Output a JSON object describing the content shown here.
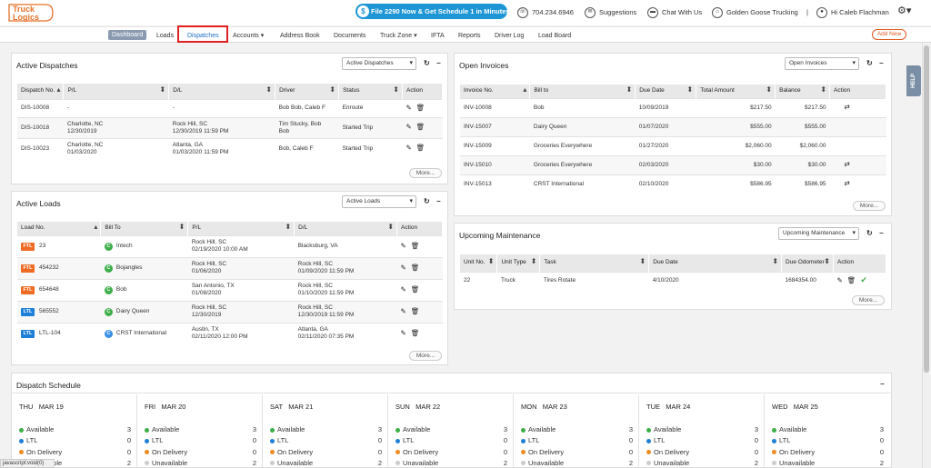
{
  "app": {
    "logo_line1": "Truck",
    "logo_line2": "Logics"
  },
  "top": {
    "promo": "File 2290 Now & Get Schedule 1 in Minutes",
    "phone": "704.234.6946",
    "suggestions": "Suggestions",
    "chat": "Chat With Us",
    "company": "Golden Goose Trucking",
    "divider": "|",
    "user": "Hi Caleb Flachman"
  },
  "nav": {
    "items": [
      "Dashboard",
      "Loads",
      "Dispatches",
      "Accounts ▾",
      "Address Book",
      "Documents",
      "Truck Zone ▾",
      "IFTA",
      "Reports",
      "Driver Log",
      "Load Board"
    ],
    "add_new": "Add New",
    "help": "HELP"
  },
  "dispatches": {
    "title": "Active Dispatches",
    "select": "Active Dispatches",
    "headers": [
      "Dispatch No.",
      "P/L",
      "D/L",
      "Driver",
      "Status",
      "Action"
    ],
    "rows": [
      {
        "no": "DIS-10008",
        "pl1": "-",
        "pl2": "",
        "dl1": "-",
        "dl2": "",
        "driver1": "Bob Bob, Caleb F",
        "driver2": "",
        "status": "Enroute"
      },
      {
        "no": "DIS-10018",
        "pl1": "Charlotte, NC",
        "pl2": "12/30/2019",
        "dl1": "Rock Hill, SC",
        "dl2": "12/30/2019 11:59 PM",
        "driver1": "Tim Stucky, Bob",
        "driver2": "Bob",
        "status": "Started Trip"
      },
      {
        "no": "DIS-10023",
        "pl1": "Charlotte, NC",
        "pl2": "01/03/2020",
        "dl1": "Atlanta, GA",
        "dl2": "01/03/2020 11:59 PM",
        "driver1": "Bob, Caleb F",
        "driver2": "",
        "status": "Started Trip"
      }
    ],
    "more": "More..."
  },
  "loads": {
    "title": "Active Loads",
    "select": "Active Loads",
    "headers": [
      "Load No.",
      "Bill To",
      "P/L",
      "D/L",
      "Action"
    ],
    "rows": [
      {
        "type": "FTL",
        "no": "23",
        "bill": "Intech",
        "pl1": "Rock Hill, SC",
        "pl2": "02/19/2020 10:00 AM",
        "dl1": "Blacksburg, VA",
        "dl2": ""
      },
      {
        "type": "FTL",
        "no": "454232",
        "bill": "Bojangles",
        "pl1": "Rock Hill, SC",
        "pl2": "01/06/2020",
        "dl1": "Rock Hill, SC",
        "dl2": "01/09/2020 11:59 PM"
      },
      {
        "type": "FTL",
        "no": "654648",
        "bill": "Bob",
        "pl1": "San Antonio, TX",
        "pl2": "01/08/2020",
        "dl1": "Rock Hill, SC",
        "dl2": "01/10/2020 11:59 PM"
      },
      {
        "type": "LTL",
        "no": "565552",
        "bill": "Dairy Queen",
        "pl1": "Rock Hill, SC",
        "pl2": "12/30/2019",
        "dl1": "Rock Hill, SC",
        "dl2": "12/30/2019 11:59 PM"
      },
      {
        "type": "LTL",
        "no": "LTL-104",
        "bill": "CRST International",
        "pl1": "Austin, TX",
        "pl2": "02/11/2020 12:00 PM",
        "dl1": "Atlanta, GA",
        "dl2": "02/11/2020 07:35 PM"
      }
    ],
    "badge": "C",
    "more": "More..."
  },
  "invoices": {
    "title": "Open Invoices",
    "select": "Open Invoices",
    "headers": [
      "Invoice No.",
      "Bill to",
      "Due Date",
      "Total Amount",
      "Balance",
      "Action"
    ],
    "rows": [
      {
        "no": "INV-10008",
        "bill": "Bob",
        "due": "10/09/2019",
        "total": "$217.50",
        "balance": "$217.50",
        "icon": true
      },
      {
        "no": "INV-15007",
        "bill": "Dairy Queen",
        "due": "01/07/2020",
        "total": "$555.00",
        "balance": "$555.00",
        "icon": false
      },
      {
        "no": "INV-15009",
        "bill": "Groceries Everywhere",
        "due": "01/27/2020",
        "total": "$2,060.00",
        "balance": "$2,060.00",
        "icon": false
      },
      {
        "no": "INV-15010",
        "bill": "Groceries Everywhere",
        "due": "02/03/2020",
        "total": "$30.00",
        "balance": "$30.00",
        "icon": true
      },
      {
        "no": "INV-15013",
        "bill": "CRST International",
        "due": "02/10/2020",
        "total": "$586.95",
        "balance": "$586.95",
        "icon": true
      }
    ],
    "more": "More..."
  },
  "maintenance": {
    "title": "Upcoming Maintenance",
    "select": "Upcoming Maintenance",
    "headers": [
      "Unit No.",
      "Unit Type",
      "Task",
      "Due Date",
      "Due Odometer",
      "Action"
    ],
    "rows": [
      {
        "unit": "22",
        "type": "Truck",
        "task": "Tires Rotate",
        "due": "4/10/2020",
        "odo": "1684354.00"
      }
    ],
    "more": "More..."
  },
  "schedule": {
    "title": "Dispatch Schedule",
    "statuses": [
      "Available",
      "LTL",
      "On Delivery",
      "Unavailable"
    ],
    "status_colors": [
      "#3dae49",
      "#1e7fd8",
      "#ef8a24",
      "#cccccc"
    ],
    "days": [
      {
        "dow": "THU",
        "date": "MAR 19",
        "counts": [
          "3",
          "0",
          "0",
          "2"
        ]
      },
      {
        "dow": "FRI",
        "date": "MAR 20",
        "counts": [
          "3",
          "0",
          "0",
          "2"
        ]
      },
      {
        "dow": "SAT",
        "date": "MAR 21",
        "counts": [
          "3",
          "0",
          "0",
          "2"
        ]
      },
      {
        "dow": "SUN",
        "date": "MAR 22",
        "counts": [
          "3",
          "0",
          "0",
          "2"
        ]
      },
      {
        "dow": "MON",
        "date": "MAR 23",
        "counts": [
          "3",
          "0",
          "0",
          "2"
        ]
      },
      {
        "dow": "TUE",
        "date": "MAR 24",
        "counts": [
          "3",
          "0",
          "0",
          "2"
        ]
      },
      {
        "dow": "WED",
        "date": "MAR 25",
        "counts": [
          "3",
          "0",
          "0",
          "2"
        ]
      }
    ]
  },
  "statusbar": "javascript:void(0)"
}
